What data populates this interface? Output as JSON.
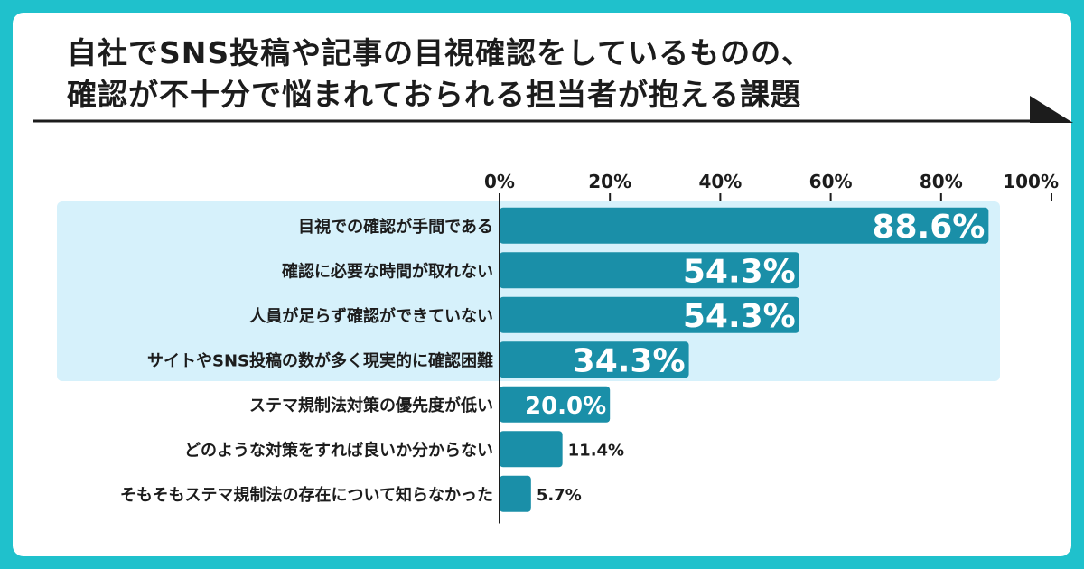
{
  "title": {
    "line1": "自社でSNS投稿や記事の目視確認をしているものの、",
    "line2": "確認が不十分で悩まれておられる担当者が抱える課題"
  },
  "colors": {
    "frame": "#1fc1cc",
    "bar": "#1a8fa8",
    "highlight_band": "#d6f1fb",
    "text": "#1c1c1c"
  },
  "chart_data": {
    "type": "bar",
    "orientation": "horizontal",
    "categories": [
      "目視での確認が手間である",
      "確認に必要な時間が取れない",
      "人員が足らず確認ができていない",
      "サイトやSNS投稿の数が多く現実的に確認困難",
      "ステマ規制法対策の優先度が低い",
      "どのような対策をすれば良いか分からない",
      "そもそもステマ規制法の存在について知らなかった"
    ],
    "values": [
      88.6,
      54.3,
      54.3,
      34.3,
      20.0,
      11.4,
      5.7
    ],
    "data_labels": [
      "88.6%",
      "54.3%",
      "54.3%",
      "34.3%",
      "20.0%",
      "11.4%",
      "5.7%"
    ],
    "xlim": [
      0,
      100
    ],
    "x_ticks": [
      0,
      20,
      40,
      60,
      80,
      100
    ],
    "x_tick_labels": [
      "0%",
      "20%",
      "40%",
      "60%",
      "80%",
      "100%"
    ],
    "highlighted_count": 4,
    "grid": false,
    "legend": "none"
  }
}
